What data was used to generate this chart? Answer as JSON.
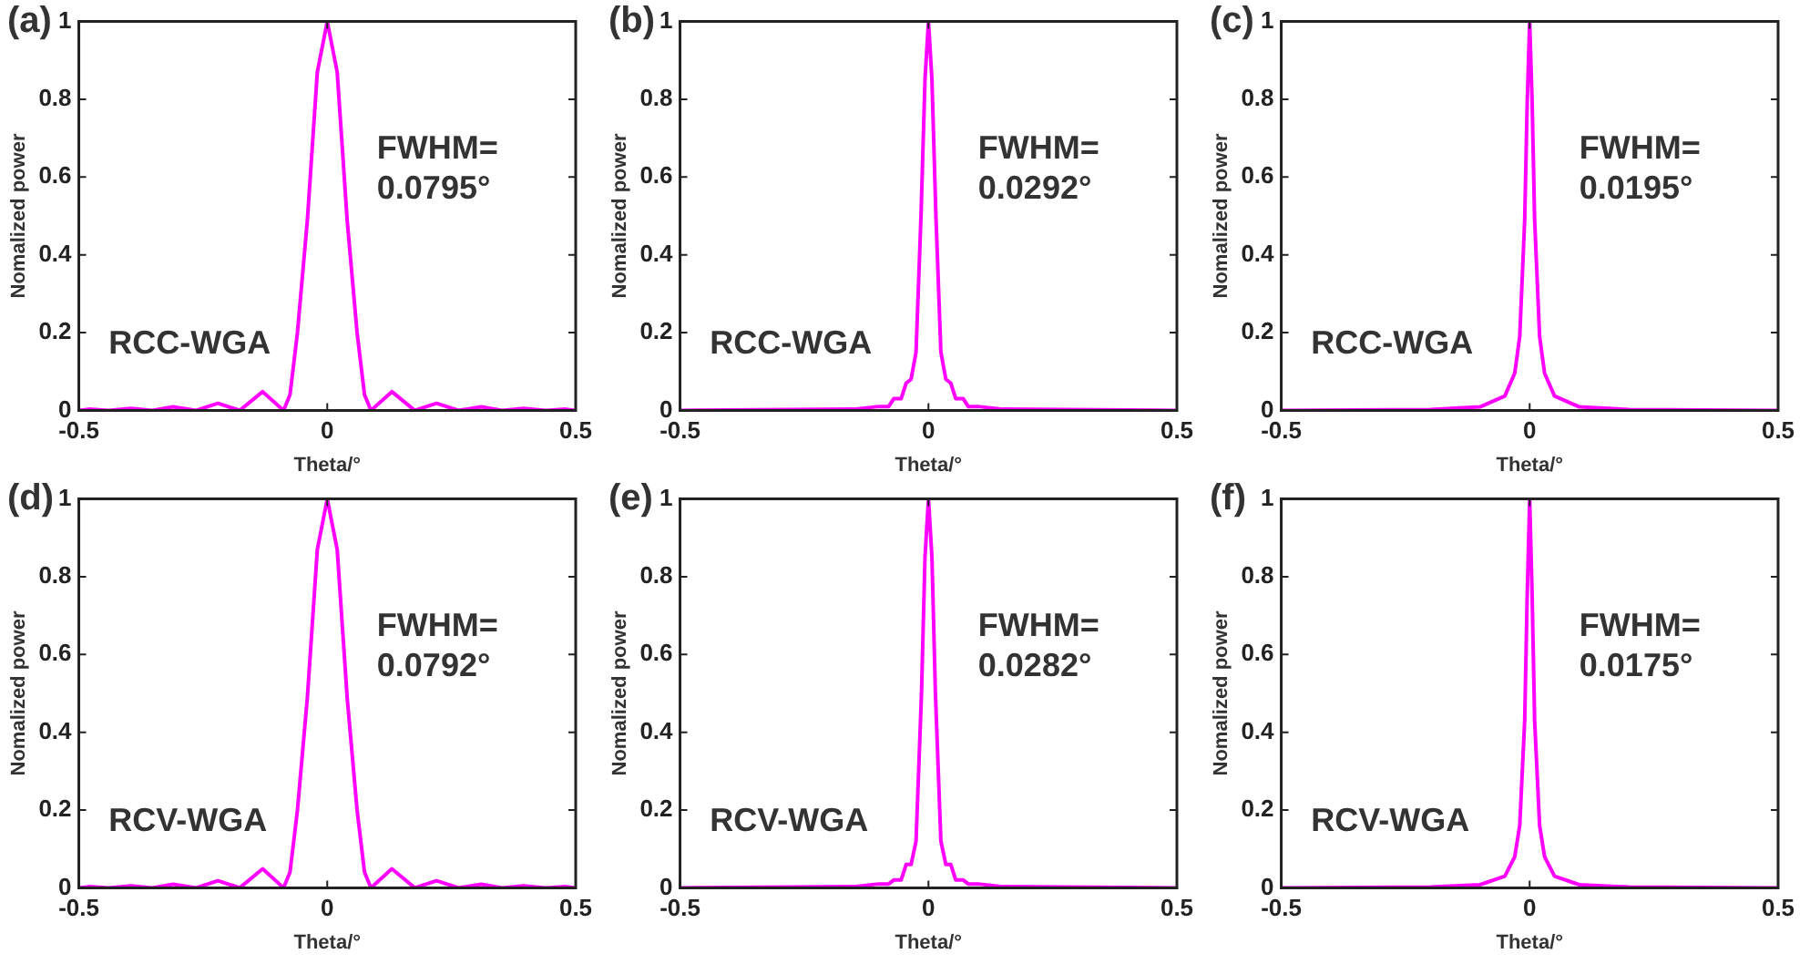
{
  "chart_data": [
    {
      "type": "line",
      "title": "(a)",
      "xlabel": "Theta/°",
      "ylabel": "Nomalized power",
      "xlim": [
        -0.5,
        0.5
      ],
      "ylim": [
        0,
        1
      ],
      "xticks": [
        -0.5,
        0,
        0.5
      ],
      "yticks": [
        0,
        0.2,
        0.4,
        0.6,
        0.8,
        1
      ],
      "annotations": [
        "FWHM=\n0.0795°",
        "RCC-WGA"
      ],
      "x": [
        -0.5,
        -0.48,
        -0.44,
        -0.395,
        -0.352,
        -0.31,
        -0.264,
        -0.22,
        -0.176,
        -0.13,
        -0.088,
        -0.075,
        -0.06,
        -0.04,
        -0.02,
        0,
        0.02,
        0.04,
        0.06,
        0.075,
        0.088,
        0.13,
        0.176,
        0.22,
        0.264,
        0.31,
        0.352,
        0.395,
        0.44,
        0.48,
        0.5
      ],
      "series": [
        {
          "color": "#ff00ff",
          "values": [
            0,
            0.003,
            0,
            0.005,
            0,
            0.009,
            0,
            0.018,
            0,
            0.048,
            0,
            0.04,
            0.2,
            0.49,
            0.87,
            1,
            0.87,
            0.49,
            0.2,
            0.04,
            0,
            0.048,
            0,
            0.018,
            0,
            0.009,
            0,
            0.005,
            0,
            0.003,
            0
          ]
        }
      ]
    },
    {
      "type": "line",
      "title": "(b)",
      "xlabel": "Theta/°",
      "ylabel": "Nomalized power",
      "xlim": [
        -0.5,
        0.5
      ],
      "ylim": [
        0,
        1
      ],
      "xticks": [
        -0.5,
        0,
        0.5
      ],
      "yticks": [
        0,
        0.2,
        0.4,
        0.6,
        0.8,
        1
      ],
      "annotations": [
        "FWHM=\n0.0292°",
        "RCC-WGA"
      ],
      "x": [
        -0.5,
        -0.15,
        -0.1,
        -0.08,
        -0.07,
        -0.055,
        -0.045,
        -0.035,
        -0.025,
        -0.015,
        -0.007,
        0,
        0.007,
        0.015,
        0.025,
        0.035,
        0.045,
        0.055,
        0.07,
        0.08,
        0.1,
        0.15,
        0.5
      ],
      "series": [
        {
          "color": "#ff00ff",
          "values": [
            0,
            0.003,
            0.01,
            0.01,
            0.03,
            0.03,
            0.07,
            0.08,
            0.15,
            0.5,
            0.85,
            1,
            0.85,
            0.5,
            0.15,
            0.08,
            0.07,
            0.03,
            0.03,
            0.01,
            0.01,
            0.003,
            0
          ]
        }
      ]
    },
    {
      "type": "line",
      "title": "(c)",
      "xlabel": "Theta/°",
      "ylabel": "Nomalized power",
      "xlim": [
        -0.5,
        0.5
      ],
      "ylim": [
        0,
        1
      ],
      "xticks": [
        -0.5,
        0,
        0.5
      ],
      "yticks": [
        0,
        0.2,
        0.4,
        0.6,
        0.8,
        1
      ],
      "annotations": [
        "FWHM=\n0.0195°",
        "RCC-WGA"
      ],
      "x": [
        -0.5,
        -0.2,
        -0.1,
        -0.05,
        -0.03,
        -0.02,
        -0.01,
        -0.005,
        0,
        0.005,
        0.01,
        0.02,
        0.03,
        0.05,
        0.1,
        0.2,
        0.5
      ],
      "series": [
        {
          "color": "#ff00ff",
          "values": [
            0,
            0.002,
            0.009,
            0.037,
            0.096,
            0.19,
            0.49,
            0.79,
            1,
            0.79,
            0.49,
            0.19,
            0.096,
            0.037,
            0.009,
            0.002,
            0
          ]
        }
      ]
    },
    {
      "type": "line",
      "title": "(d)",
      "xlabel": "Theta/°",
      "ylabel": "Nomalized power",
      "xlim": [
        -0.5,
        0.5
      ],
      "ylim": [
        0,
        1
      ],
      "xticks": [
        -0.5,
        0,
        0.5
      ],
      "yticks": [
        0,
        0.2,
        0.4,
        0.6,
        0.8,
        1
      ],
      "annotations": [
        "FWHM=\n0.0792°",
        "RCV-WGA"
      ],
      "x": [
        -0.5,
        -0.48,
        -0.44,
        -0.395,
        -0.352,
        -0.31,
        -0.264,
        -0.22,
        -0.176,
        -0.13,
        -0.088,
        -0.075,
        -0.06,
        -0.04,
        -0.02,
        0,
        0.02,
        0.04,
        0.06,
        0.075,
        0.088,
        0.13,
        0.176,
        0.22,
        0.264,
        0.31,
        0.352,
        0.395,
        0.44,
        0.48,
        0.5
      ],
      "series": [
        {
          "color": "#ff00ff",
          "values": [
            0,
            0.003,
            0,
            0.005,
            0,
            0.009,
            0,
            0.018,
            0,
            0.049,
            0,
            0.04,
            0.2,
            0.49,
            0.87,
            1,
            0.87,
            0.49,
            0.2,
            0.04,
            0,
            0.049,
            0,
            0.018,
            0,
            0.009,
            0,
            0.005,
            0,
            0.003,
            0
          ]
        }
      ]
    },
    {
      "type": "line",
      "title": "(e)",
      "xlabel": "Theta/°",
      "ylabel": "Nomalized power",
      "xlim": [
        -0.5,
        0.5
      ],
      "ylim": [
        0,
        1
      ],
      "xticks": [
        -0.5,
        0,
        0.5
      ],
      "yticks": [
        0,
        0.2,
        0.4,
        0.6,
        0.8,
        1
      ],
      "annotations": [
        "FWHM=\n0.0282°",
        "RCV-WGA"
      ],
      "x": [
        -0.5,
        -0.15,
        -0.1,
        -0.08,
        -0.07,
        -0.055,
        -0.045,
        -0.035,
        -0.025,
        -0.014,
        -0.007,
        0,
        0.007,
        0.014,
        0.025,
        0.035,
        0.045,
        0.055,
        0.07,
        0.08,
        0.1,
        0.15,
        0.5
      ],
      "series": [
        {
          "color": "#ff00ff",
          "values": [
            0,
            0.003,
            0.01,
            0.01,
            0.02,
            0.02,
            0.06,
            0.06,
            0.12,
            0.5,
            0.85,
            1,
            0.85,
            0.5,
            0.12,
            0.06,
            0.06,
            0.02,
            0.02,
            0.01,
            0.01,
            0.003,
            0
          ]
        }
      ]
    },
    {
      "type": "line",
      "title": "(f)",
      "xlabel": "Theta/°",
      "ylabel": "Nomalized power",
      "xlim": [
        -0.5,
        0.5
      ],
      "ylim": [
        0,
        1
      ],
      "xticks": [
        -0.5,
        0,
        0.5
      ],
      "yticks": [
        0,
        0.2,
        0.4,
        0.6,
        0.8,
        1
      ],
      "annotations": [
        "FWHM=\n0.0175°",
        "RCV-WGA"
      ],
      "x": [
        -0.5,
        -0.2,
        -0.1,
        -0.05,
        -0.03,
        -0.02,
        -0.01,
        -0.005,
        0,
        0.005,
        0.01,
        0.02,
        0.03,
        0.05,
        0.1,
        0.2,
        0.5
      ],
      "series": [
        {
          "color": "#ff00ff",
          "values": [
            0,
            0.002,
            0.008,
            0.03,
            0.08,
            0.16,
            0.43,
            0.75,
            1,
            0.75,
            0.43,
            0.16,
            0.08,
            0.03,
            0.008,
            0.002,
            0
          ]
        }
      ]
    }
  ]
}
